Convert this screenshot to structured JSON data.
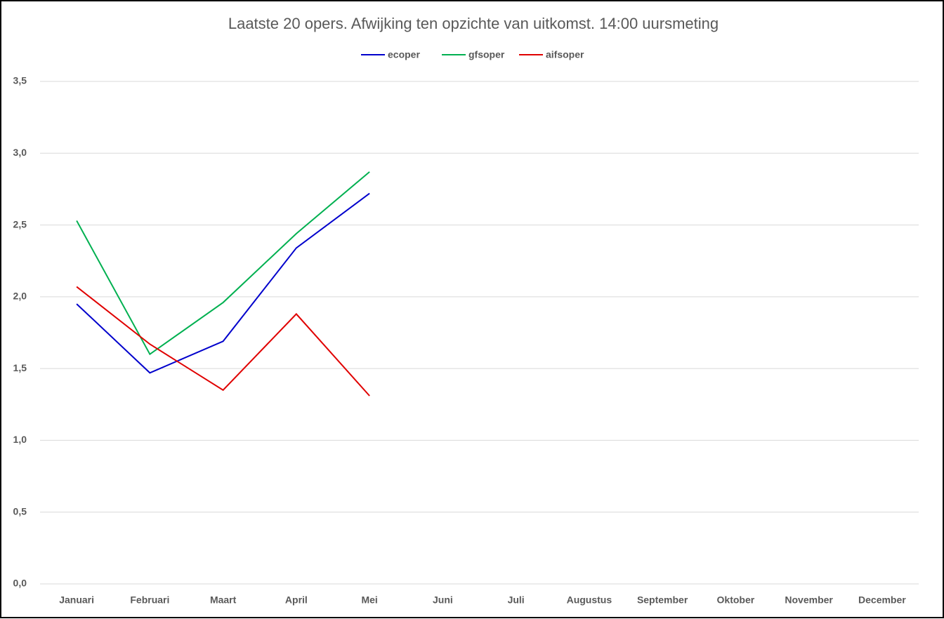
{
  "chart_data": {
    "type": "line",
    "title": "Laatste 20 opers. Afwijking ten opzichte van uitkomst. 14:00 uursmeting",
    "categories": [
      "Januari",
      "Februari",
      "Maart",
      "April",
      "Mei",
      "Juni",
      "Juli",
      "Augustus",
      "September",
      "Oktober",
      "November",
      "December"
    ],
    "series": [
      {
        "name": "ecoper",
        "color": "#0000cc",
        "values": [
          1.95,
          1.47,
          1.69,
          2.34,
          2.72,
          null,
          null,
          null,
          null,
          null,
          null,
          null
        ]
      },
      {
        "name": "gfsoper",
        "color": "#00b050",
        "values": [
          2.53,
          1.6,
          1.96,
          2.44,
          2.87,
          null,
          null,
          null,
          null,
          null,
          null,
          null
        ]
      },
      {
        "name": "aifsoper",
        "color": "#e00000",
        "values": [
          2.07,
          1.67,
          1.35,
          1.88,
          1.31,
          null,
          null,
          null,
          null,
          null,
          null,
          null
        ]
      }
    ],
    "ylim": [
      0,
      3.5
    ],
    "yticks": [
      {
        "value": 0,
        "label": "0,0"
      },
      {
        "value": 0.5,
        "label": "0,5"
      },
      {
        "value": 1,
        "label": "1,0"
      },
      {
        "value": 1.5,
        "label": "1,5"
      },
      {
        "value": 2,
        "label": "2,0"
      },
      {
        "value": 2.5,
        "label": "2,5"
      },
      {
        "value": 3,
        "label": "3,0"
      },
      {
        "value": 3.5,
        "label": "3,5"
      }
    ],
    "grid": true,
    "legend": "top"
  }
}
